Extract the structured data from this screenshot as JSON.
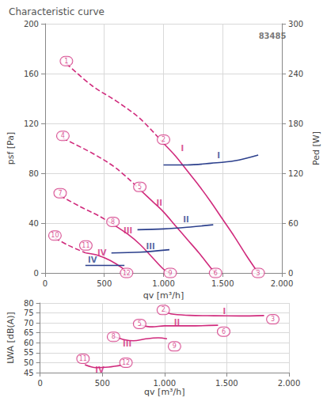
{
  "chart_data": [
    {
      "type": "line",
      "title": "Characteristic curve",
      "x_label": "qv [m³/h]",
      "y_label": "psf [Pa]",
      "y2_label": "Ped [W]",
      "xlim": [
        0,
        2000
      ],
      "xticks": [
        0,
        500,
        {
          "value": 1000,
          "label": "1.000"
        },
        {
          "value": 1500,
          "label": "1.500"
        },
        {
          "value": 2000,
          "label": "2.000"
        }
      ],
      "ylim": [
        0,
        200
      ],
      "yticks": [
        0,
        40,
        80,
        120,
        160,
        200
      ],
      "y2lim": [
        0,
        300
      ],
      "y2ticks": [
        0,
        60,
        120,
        180,
        240,
        300
      ],
      "grid": true,
      "series": [
        {
          "name": "I",
          "color": "#d02a7c",
          "line_style": "dashed",
          "x": [
            180,
            400,
            600,
            800,
            1000
          ],
          "values": [
            168,
            150,
            138,
            124,
            104
          ]
        },
        {
          "name": "I",
          "color": "#d02a7c",
          "line_style": "solid",
          "x": [
            1000,
            1100,
            1200,
            1300,
            1400,
            1500,
            1600,
            1700,
            1800
          ],
          "values": [
            104,
            94,
            82,
            70,
            57,
            43,
            29,
            14,
            0
          ]
        },
        {
          "name": "II",
          "color": "#d02a7c",
          "line_style": "dashed",
          "x": [
            150,
            400,
            600,
            800
          ],
          "values": [
            108,
            96,
            84,
            67
          ]
        },
        {
          "name": "II",
          "color": "#d02a7c",
          "line_style": "solid",
          "x": [
            800,
            900,
            1000,
            1100,
            1200,
            1300,
            1400,
            1440
          ],
          "values": [
            67,
            58,
            49,
            38,
            27,
            16,
            4,
            0
          ]
        },
        {
          "name": "III",
          "color": "#d02a7c",
          "line_style": "dashed",
          "x": [
            127,
            300,
            450,
            573
          ],
          "values": [
            62,
            53,
            46,
            39
          ]
        },
        {
          "name": "III",
          "color": "#d02a7c",
          "line_style": "solid",
          "x": [
            573,
            700,
            800,
            900,
            1000,
            1050
          ],
          "values": [
            39,
            31,
            23,
            13,
            3,
            0
          ]
        },
        {
          "name": "IV",
          "color": "#d02a7c",
          "line_style": "dashed",
          "x": [
            83,
            200,
            344
          ],
          "values": [
            28,
            22,
            16
          ]
        },
        {
          "name": "IV",
          "color": "#d02a7c",
          "line_style": "solid",
          "x": [
            344,
            450,
            550,
            650,
            690
          ],
          "values": [
            16,
            14,
            10,
            4,
            0
          ]
        },
        {
          "name": "I",
          "color": "#2b3f8c",
          "line_style": "solid",
          "axis": "y2",
          "x": [
            1000,
            1200,
            1400,
            1600,
            1800
          ],
          "values": [
            130,
            130,
            132,
            135,
            142
          ]
        },
        {
          "name": "II",
          "color": "#2b3f8c",
          "line_style": "solid",
          "axis": "y2",
          "x": [
            780,
            1000,
            1200,
            1420
          ],
          "values": [
            52,
            53,
            55,
            58
          ]
        },
        {
          "name": "III",
          "color": "#2b3f8c",
          "line_style": "solid",
          "axis": "y2",
          "x": [
            560,
            800,
            1050
          ],
          "values": [
            24,
            25,
            28
          ]
        },
        {
          "name": "IV",
          "color": "#2b3f8c",
          "line_style": "solid",
          "axis": "y2",
          "x": [
            340,
            500,
            670
          ],
          "values": [
            9,
            9,
            9
          ]
        }
      ],
      "annotations": [
        {
          "text": "1",
          "x": 180,
          "y": 170,
          "color": "#d02a7c",
          "marker": "circle"
        },
        {
          "text": "2",
          "x": 1000,
          "y": 107,
          "color": "#d02a7c",
          "marker": "circle"
        },
        {
          "text": "3",
          "x": 1800,
          "y": 0,
          "color": "#d02a7c",
          "marker": "circle"
        },
        {
          "text": "4",
          "x": 150,
          "y": 110,
          "color": "#d02a7c",
          "marker": "circle"
        },
        {
          "text": "5",
          "x": 800,
          "y": 69,
          "color": "#d02a7c",
          "marker": "circle"
        },
        {
          "text": "6",
          "x": 1440,
          "y": 0,
          "color": "#d02a7c",
          "marker": "circle"
        },
        {
          "text": "7",
          "x": 127,
          "y": 64,
          "color": "#d02a7c",
          "marker": "circle"
        },
        {
          "text": "8",
          "x": 573,
          "y": 41,
          "color": "#d02a7c",
          "marker": "circle"
        },
        {
          "text": "9",
          "x": 1057,
          "y": 0,
          "color": "#d02a7c",
          "marker": "circle"
        },
        {
          "text": "10",
          "x": 83,
          "y": 30,
          "color": "#d02a7c",
          "marker": "circle"
        },
        {
          "text": "11",
          "x": 344,
          "y": 22,
          "color": "#d02a7c",
          "marker": "circle"
        },
        {
          "text": "12",
          "x": 688,
          "y": 0,
          "color": "#d02a7c",
          "marker": "circle"
        },
        {
          "text": "I",
          "x": 1160,
          "y": 100,
          "color": "#d02a7c"
        },
        {
          "text": "II",
          "x": 965,
          "y": 56,
          "color": "#d02a7c"
        },
        {
          "text": "III",
          "x": 700,
          "y": 34,
          "color": "#d02a7c"
        },
        {
          "text": "IV",
          "x": 480,
          "y": 16,
          "color": "#d02a7c"
        },
        {
          "text": "I",
          "x": 1465,
          "y": 141,
          "color": "#2b3f8c",
          "axis": "y2"
        },
        {
          "text": "II",
          "x": 1190,
          "y": 64,
          "color": "#2b3f8c",
          "axis": "y2"
        },
        {
          "text": "III",
          "x": 890,
          "y": 32,
          "color": "#2b3f8c",
          "axis": "y2"
        },
        {
          "text": "IV",
          "x": 400,
          "y": 16,
          "color": "#2b3f8c",
          "axis": "y2"
        },
        {
          "text": "83485",
          "x": 1920,
          "y": 190,
          "color": "#555555"
        }
      ]
    },
    {
      "type": "line",
      "x_label": "qv [m³/h]",
      "y_label": "LWA [dB(A)]",
      "xlim": [
        0,
        2000
      ],
      "xticks": [
        0,
        500,
        {
          "value": 1000,
          "label": "1.000"
        },
        {
          "value": 1500,
          "label": "1.500"
        },
        {
          "value": 2000,
          "label": "2.000"
        }
      ],
      "ylim": [
        45,
        80
      ],
      "yticks": [
        45,
        50,
        55,
        60,
        65,
        70,
        75,
        80
      ],
      "grid": true,
      "series": [
        {
          "name": "I",
          "color": "#d02a7c",
          "line_style": "solid",
          "x": [
            1000,
            1050,
            1200,
            1400,
            1600,
            1800
          ],
          "values": [
            76,
            74.5,
            73.8,
            73.6,
            73.5,
            73.7
          ]
        },
        {
          "name": "II",
          "color": "#d02a7c",
          "line_style": "solid",
          "x": [
            800,
            900,
            1000,
            1200,
            1430
          ],
          "values": [
            69,
            68,
            68.5,
            68.5,
            68.8
          ]
        },
        {
          "name": "III",
          "color": "#d02a7c",
          "line_style": "solid",
          "x": [
            600,
            680,
            750,
            850,
            950,
            1020
          ],
          "values": [
            63,
            61.5,
            61,
            62,
            62.5,
            62
          ]
        },
        {
          "name": "IV",
          "color": "#d02a7c",
          "line_style": "solid",
          "x": [
            360,
            450,
            550,
            660
          ],
          "values": [
            49,
            47.5,
            47.8,
            48.8
          ]
        }
      ],
      "annotations": [
        {
          "text": "2",
          "x": 990,
          "y": 76.5,
          "color": "#d02a7c",
          "marker": "circle"
        },
        {
          "text": "3",
          "x": 1870,
          "y": 71.8,
          "color": "#d02a7c",
          "marker": "circle"
        },
        {
          "text": "5",
          "x": 800,
          "y": 69.5,
          "color": "#d02a7c",
          "marker": "circle"
        },
        {
          "text": "6",
          "x": 1475,
          "y": 65.6,
          "color": "#d02a7c",
          "marker": "circle"
        },
        {
          "text": "8",
          "x": 590,
          "y": 63,
          "color": "#d02a7c",
          "marker": "circle"
        },
        {
          "text": "9",
          "x": 1080,
          "y": 58.2,
          "color": "#d02a7c",
          "marker": "circle"
        },
        {
          "text": "11",
          "x": 345,
          "y": 52,
          "color": "#d02a7c",
          "marker": "circle"
        },
        {
          "text": "12",
          "x": 690,
          "y": 50,
          "color": "#d02a7c",
          "marker": "circle"
        },
        {
          "text": "I",
          "x": 1480,
          "y": 75.8,
          "color": "#d02a7c"
        },
        {
          "text": "II",
          "x": 1100,
          "y": 70.3,
          "color": "#d02a7c"
        },
        {
          "text": "III",
          "x": 700,
          "y": 59.6,
          "color": "#d02a7c"
        },
        {
          "text": "IV",
          "x": 480,
          "y": 46.2,
          "color": "#d02a7c"
        }
      ]
    }
  ]
}
